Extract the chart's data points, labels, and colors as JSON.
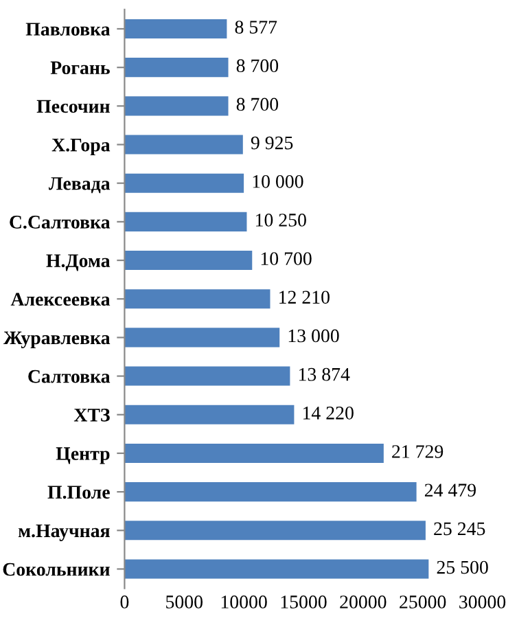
{
  "chart_data": {
    "type": "bar",
    "orientation": "horizontal",
    "categories": [
      "Павловка",
      "Рогань",
      "Песочин",
      "Х.Гора",
      "Левада",
      "С.Салтовка",
      "Н.Дома",
      "Алексеевка",
      "Журавлевка",
      "Салтовка",
      "ХТЗ",
      "Центр",
      "П.Поле",
      "м.Научная",
      "Сокольники"
    ],
    "values": [
      8577,
      8700,
      8700,
      9925,
      10000,
      10250,
      10700,
      12210,
      13000,
      13874,
      14220,
      21729,
      24479,
      25245,
      25500
    ],
    "value_labels": [
      "8 577",
      "8 700",
      "8 700",
      "9 925",
      "10 000",
      "10 250",
      "10 700",
      "12 210",
      "13 000",
      "13 874",
      "14 220",
      "21 729",
      "24 479",
      "25 245",
      "25 500"
    ],
    "color": "#4f81bd",
    "xlim": [
      0,
      30000
    ],
    "xticks": [
      0,
      5000,
      10000,
      15000,
      20000,
      25000,
      30000
    ],
    "grid": false
  }
}
